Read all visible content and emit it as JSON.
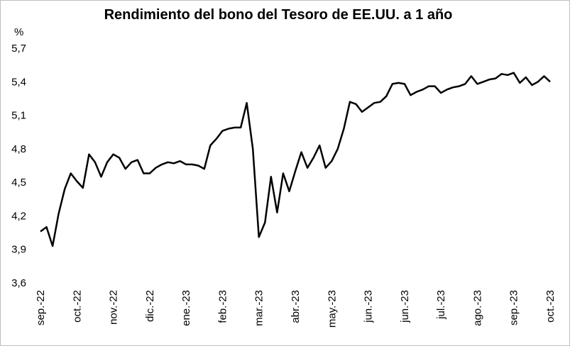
{
  "chart_data": {
    "type": "line",
    "title": "Rendimiento del bono del Tesoro de EE.UU. a 1 año",
    "y_label": "%",
    "categories": [
      "sep.-22",
      null,
      null,
      null,
      null,
      null,
      "oct.-22",
      null,
      null,
      null,
      null,
      null,
      "nov.-22",
      null,
      null,
      null,
      null,
      null,
      "dic.-22",
      null,
      null,
      null,
      null,
      null,
      "ene.-23",
      null,
      null,
      null,
      null,
      null,
      "feb.-23",
      null,
      null,
      null,
      null,
      null,
      "mar.-23",
      null,
      null,
      null,
      null,
      null,
      "abr.-23",
      null,
      null,
      null,
      null,
      null,
      "may.-23",
      null,
      null,
      null,
      null,
      null,
      "jun.-23",
      null,
      null,
      null,
      null,
      null,
      "jun.-23",
      null,
      null,
      null,
      null,
      null,
      "jul.-23",
      null,
      null,
      null,
      null,
      null,
      "ago.-23",
      null,
      null,
      null,
      null,
      null,
      "sep.-23",
      null,
      null,
      null,
      null,
      null,
      "oct.-23"
    ],
    "series": [
      {
        "name": "Rendimiento",
        "color": "#000000",
        "values": [
          4.06,
          4.1,
          3.93,
          4.22,
          4.44,
          4.58,
          4.51,
          4.45,
          4.75,
          4.68,
          4.55,
          4.68,
          4.75,
          4.72,
          4.62,
          4.68,
          4.7,
          4.58,
          4.58,
          4.63,
          4.66,
          4.68,
          4.67,
          4.69,
          4.66,
          4.66,
          4.65,
          4.62,
          4.83,
          4.89,
          4.96,
          4.98,
          4.99,
          4.99,
          5.21,
          4.8,
          4.01,
          4.14,
          4.55,
          4.23,
          4.58,
          4.42,
          4.6,
          4.77,
          4.63,
          4.72,
          4.83,
          4.63,
          4.69,
          4.8,
          4.98,
          5.22,
          5.2,
          5.13,
          5.17,
          5.21,
          5.22,
          5.27,
          5.38,
          5.39,
          5.38,
          5.28,
          5.31,
          5.33,
          5.36,
          5.36,
          5.3,
          5.33,
          5.35,
          5.36,
          5.38,
          5.45,
          5.38,
          5.4,
          5.42,
          5.43,
          5.47,
          5.46,
          5.48,
          5.39,
          5.44,
          5.37,
          5.4,
          5.45,
          5.4
        ]
      }
    ],
    "ylim": [
      3.6,
      5.7
    ],
    "yticks": [
      {
        "value": 3.6,
        "label": "3,6"
      },
      {
        "value": 3.9,
        "label": "3,9"
      },
      {
        "value": 4.2,
        "label": "4,2"
      },
      {
        "value": 4.5,
        "label": "4,5"
      },
      {
        "value": 4.8,
        "label": "4,8"
      },
      {
        "value": 5.1,
        "label": "5,1"
      },
      {
        "value": 5.4,
        "label": "5,4"
      },
      {
        "value": 5.7,
        "label": "5,7"
      }
    ],
    "grid": false
  }
}
